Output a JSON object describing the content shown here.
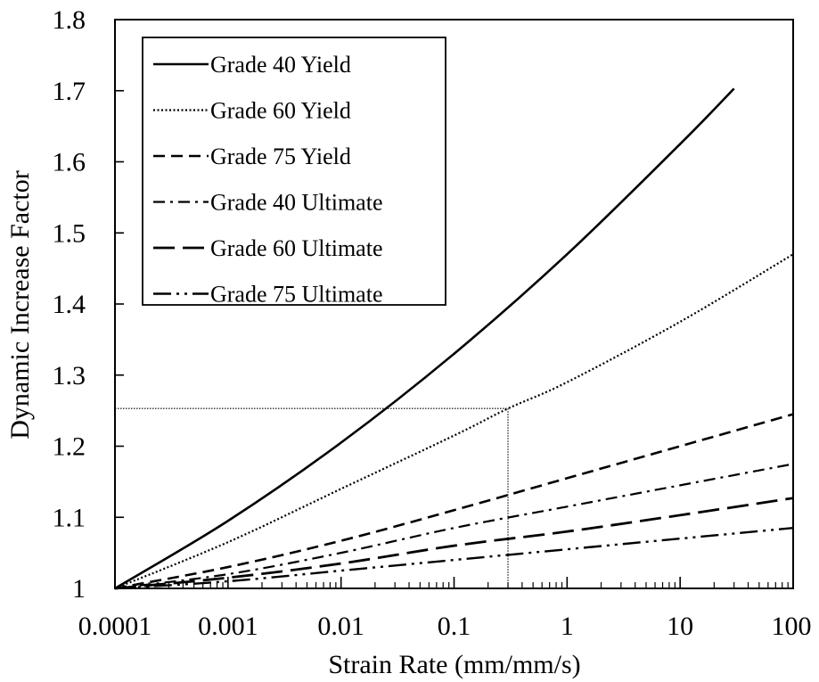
{
  "chart_data": {
    "type": "line",
    "title": "",
    "xlabel": "Strain Rate (mm/mm/s)",
    "ylabel": "Dynamic Increase Factor",
    "x_scale": "log",
    "xlim": [
      0.0001,
      100
    ],
    "ylim": [
      1,
      1.8
    ],
    "x_ticks": [
      "0.0001",
      "0.001",
      "0.01",
      "0.1",
      "1",
      "10",
      "100"
    ],
    "y_ticks": [
      "1",
      "1.1",
      "1.2",
      "1.3",
      "1.4",
      "1.5",
      "1.6",
      "1.7",
      "1.8"
    ],
    "grid": false,
    "legend_position": "top-left",
    "series": [
      {
        "name": "Grade 40 Yield",
        "dash": "solid",
        "x": [
          0.0001,
          0.001,
          0.01,
          0.1,
          1,
          10,
          30
        ],
        "y": [
          1.0,
          1.095,
          1.205,
          1.33,
          1.47,
          1.625,
          1.703
        ]
      },
      {
        "name": "Grade 60 Yield",
        "dash": "dotted",
        "x": [
          0.0001,
          0.001,
          0.01,
          0.1,
          0.3,
          1,
          10,
          100
        ],
        "y": [
          1.0,
          1.065,
          1.14,
          1.215,
          1.253,
          1.29,
          1.375,
          1.47
        ]
      },
      {
        "name": "Grade 75 Yield",
        "dash": "dashed",
        "x": [
          0.0001,
          0.001,
          0.01,
          0.1,
          1,
          10,
          100
        ],
        "y": [
          1.0,
          1.03,
          1.067,
          1.11,
          1.155,
          1.2,
          1.245
        ]
      },
      {
        "name": "Grade 40 Ultimate",
        "dash": "dashdot",
        "x": [
          0.0001,
          0.001,
          0.01,
          0.1,
          1,
          10,
          100
        ],
        "y": [
          1.0,
          1.02,
          1.05,
          1.085,
          1.115,
          1.145,
          1.175
        ]
      },
      {
        "name": "Grade 60 Ultimate",
        "dash": "longdash",
        "x": [
          0.0001,
          0.001,
          0.01,
          0.1,
          1,
          10,
          100
        ],
        "y": [
          1.0,
          1.015,
          1.035,
          1.06,
          1.08,
          1.103,
          1.127
        ]
      },
      {
        "name": "Grade 75 Ultimate",
        "dash": "dashdotdot",
        "x": [
          0.0001,
          0.001,
          0.01,
          0.1,
          1,
          10,
          100
        ],
        "y": [
          1.0,
          1.01,
          1.025,
          1.04,
          1.055,
          1.07,
          1.085
        ]
      }
    ],
    "reference_lines": {
      "x": 0.3,
      "y": 1.253,
      "style": "dotted"
    }
  }
}
